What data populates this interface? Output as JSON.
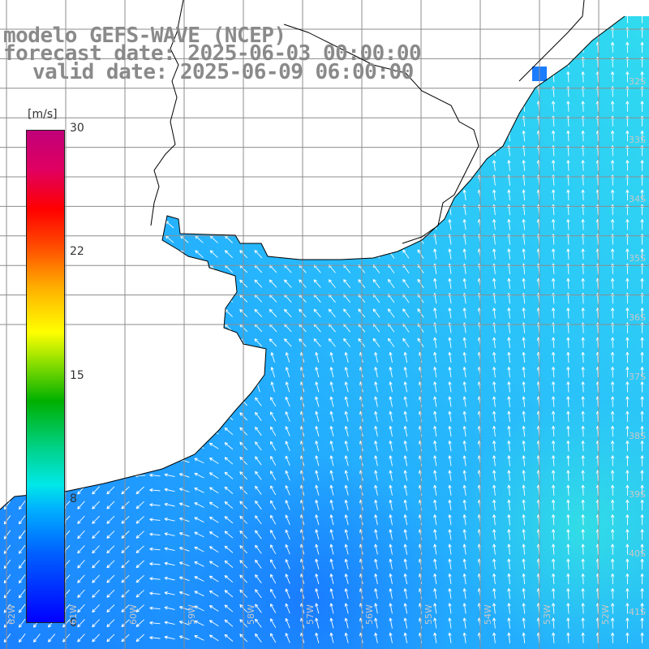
{
  "title": {
    "line1": "modelo GEFS-WAVE (NCEP)",
    "line2": "forecast date: 2025-06-03 00:00:00",
    "line3": "valid date: 2025-06-09 06:00:00"
  },
  "colorbar": {
    "unit": "[m/s]",
    "min": 0,
    "max": 30,
    "ticks": [
      "30",
      "22",
      "15",
      "8",
      "0"
    ]
  },
  "grid": {
    "lat_labels": [
      "32S",
      "33S",
      "34S",
      "35S",
      "36S",
      "37S",
      "38S",
      "39S",
      "40S",
      "41S"
    ],
    "lon_labels": [
      "62W",
      "61W",
      "60W",
      "59W",
      "58W",
      "57W",
      "56W",
      "55W",
      "54W",
      "53W",
      "52W"
    ]
  },
  "colors": {
    "ocean_low": "#1f8fff",
    "ocean_high": "#2ad4f4",
    "land": "#ffffff",
    "coastline": "#000000",
    "gridline": "#8c8c8c",
    "arrow": "#ffffff",
    "title_text": "#8a8a8a"
  },
  "wind_field": {
    "description_value_range_ms": [
      4,
      8
    ],
    "general_direction": "from south-east / south",
    "arrow_icon": "wind-arrow-icon"
  }
}
